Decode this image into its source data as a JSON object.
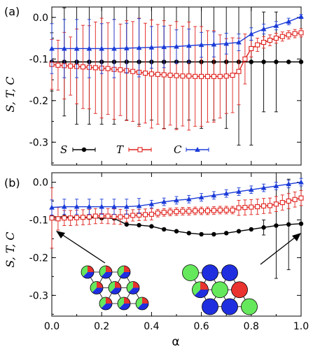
{
  "chart_data": [
    {
      "type": "line",
      "panel_label": "(a)",
      "ylabel": "S, T, C",
      "xlim": [
        0.0,
        1.0
      ],
      "ylim": [
        -0.355,
        0.025
      ],
      "yticks": [
        0.0,
        -0.1,
        -0.2,
        -0.3
      ],
      "ytick_labels": [
        "0.0",
        "-0.1",
        "-0.2",
        "-0.3"
      ],
      "legend_position": "bottom-left",
      "series": [
        {
          "name": "S",
          "color": "#000000",
          "marker": "circle-filled",
          "x": [
            0.0,
            0.05,
            0.1,
            0.15,
            0.2,
            0.25,
            0.3,
            0.35,
            0.4,
            0.45,
            0.5,
            0.55,
            0.6,
            0.65,
            0.7,
            0.75,
            0.8,
            0.85,
            0.9,
            0.95,
            1.0
          ],
          "y": [
            -0.107,
            -0.107,
            -0.107,
            -0.107,
            -0.107,
            -0.107,
            -0.107,
            -0.107,
            -0.107,
            -0.107,
            -0.107,
            -0.107,
            -0.107,
            -0.107,
            -0.107,
            -0.107,
            -0.107,
            -0.107,
            -0.107,
            -0.107,
            -0.107
          ],
          "error": [
            0.07,
            0.13,
            0.15,
            0.15,
            0.15,
            0.15,
            0.14,
            0.15,
            0.14,
            0.16,
            0.16,
            0.14,
            0.16,
            0.14,
            0.16,
            0.2,
            0.2,
            0.12,
            0.12,
            0.0,
            0.0
          ]
        },
        {
          "name": "T",
          "color": "#e0201b",
          "marker": "square-open",
          "x": [
            0.0,
            0.025,
            0.05,
            0.075,
            0.1,
            0.125,
            0.15,
            0.175,
            0.2,
            0.225,
            0.25,
            0.275,
            0.3,
            0.325,
            0.35,
            0.375,
            0.4,
            0.425,
            0.45,
            0.475,
            0.5,
            0.525,
            0.55,
            0.575,
            0.6,
            0.625,
            0.65,
            0.675,
            0.7,
            0.725,
            0.75,
            0.775,
            0.8,
            0.825,
            0.85,
            0.875,
            0.9,
            0.925,
            0.95,
            0.975,
            1.0
          ],
          "y": [
            -0.113,
            -0.115,
            -0.116,
            -0.117,
            -0.118,
            -0.119,
            -0.12,
            -0.121,
            -0.122,
            -0.123,
            -0.125,
            -0.126,
            -0.128,
            -0.13,
            -0.132,
            -0.134,
            -0.136,
            -0.137,
            -0.138,
            -0.139,
            -0.14,
            -0.141,
            -0.141,
            -0.142,
            -0.142,
            -0.142,
            -0.142,
            -0.142,
            -0.141,
            -0.139,
            -0.13,
            -0.1,
            -0.075,
            -0.066,
            -0.06,
            -0.055,
            -0.05,
            -0.046,
            -0.042,
            -0.039,
            -0.037
          ],
          "error": [
            0.06,
            0.06,
            0.08,
            0.07,
            0.09,
            0.1,
            0.1,
            0.11,
            0.12,
            0.11,
            0.12,
            0.11,
            0.12,
            0.12,
            0.13,
            0.12,
            0.13,
            0.12,
            0.13,
            0.12,
            0.13,
            0.12,
            0.13,
            0.12,
            0.12,
            0.11,
            0.11,
            0.1,
            0.09,
            0.09,
            0.08,
            0.06,
            0.02,
            0.016,
            0.014,
            0.013,
            0.012,
            0.011,
            0.01,
            0.01,
            0.01
          ]
        },
        {
          "name": "C",
          "color": "#1a3bd8",
          "marker": "triangle-filled",
          "x": [
            0.0,
            0.05,
            0.1,
            0.15,
            0.2,
            0.25,
            0.3,
            0.35,
            0.4,
            0.45,
            0.5,
            0.55,
            0.6,
            0.65,
            0.7,
            0.75,
            0.8,
            0.85,
            0.9,
            0.95,
            1.0
          ],
          "y": [
            -0.075,
            -0.075,
            -0.075,
            -0.075,
            -0.075,
            -0.075,
            -0.074,
            -0.073,
            -0.072,
            -0.071,
            -0.07,
            -0.068,
            -0.066,
            -0.065,
            -0.063,
            -0.06,
            -0.04,
            -0.028,
            -0.02,
            -0.01,
            0.002
          ],
          "error": [
            0.06,
            0.07,
            0.07,
            0.07,
            0.06,
            0.07,
            0.06,
            0.07,
            0.05,
            0.05,
            0.04,
            0.04,
            0.03,
            0.03,
            0.025,
            0.02,
            0.015,
            0.012,
            0.01,
            0.008,
            0.005
          ]
        }
      ]
    },
    {
      "type": "line",
      "panel_label": "(b)",
      "ylabel": "S, T, C",
      "xlabel": "α",
      "xlim": [
        0.0,
        1.0
      ],
      "ylim": [
        -0.355,
        0.025
      ],
      "xticks": [
        0.0,
        0.2,
        0.4,
        0.6,
        0.8,
        1.0
      ],
      "xtick_labels": [
        "0.0",
        "0.2",
        "0.4",
        "0.6",
        "0.8",
        "1.0"
      ],
      "yticks": [
        0.0,
        -0.1,
        -0.2,
        -0.3
      ],
      "ytick_labels": [
        "0.0",
        "-0.1",
        "-0.2",
        "-0.3"
      ],
      "series": [
        {
          "name": "S",
          "color": "#000000",
          "marker": "circle-filled",
          "x": [
            0.0,
            0.05,
            0.1,
            0.15,
            0.2,
            0.25,
            0.3,
            0.35,
            0.4,
            0.45,
            0.5,
            0.55,
            0.6,
            0.65,
            0.7,
            0.75,
            0.8,
            0.85,
            0.9,
            0.95,
            1.0
          ],
          "y": [
            -0.092,
            -0.092,
            -0.093,
            -0.094,
            -0.095,
            -0.096,
            -0.112,
            -0.114,
            -0.117,
            -0.125,
            -0.13,
            -0.135,
            -0.138,
            -0.138,
            -0.135,
            -0.13,
            -0.125,
            -0.12,
            -0.115,
            -0.112,
            -0.11
          ],
          "error": [
            0.0,
            0.0,
            0.0,
            0.0,
            0.0,
            0.0,
            0.0,
            0.0,
            0.0,
            0.0,
            0.0,
            0.0,
            0.0,
            0.0,
            0.0,
            0.0,
            0.0,
            0.02,
            0.14,
            0.12,
            0.0
          ]
        },
        {
          "name": "T",
          "color": "#e0201b",
          "marker": "square-open",
          "x": [
            0.0,
            0.025,
            0.05,
            0.075,
            0.1,
            0.125,
            0.15,
            0.175,
            0.2,
            0.225,
            0.25,
            0.275,
            0.3,
            0.325,
            0.35,
            0.375,
            0.4,
            0.425,
            0.45,
            0.475,
            0.5,
            0.525,
            0.55,
            0.575,
            0.6,
            0.625,
            0.65,
            0.675,
            0.7,
            0.725,
            0.75,
            0.775,
            0.8,
            0.825,
            0.85,
            0.875,
            0.9,
            0.925,
            0.95,
            0.975,
            1.0
          ],
          "y": [
            -0.095,
            -0.097,
            -0.095,
            -0.095,
            -0.094,
            -0.093,
            -0.092,
            -0.09,
            -0.089,
            -0.09,
            -0.091,
            -0.092,
            -0.09,
            -0.088,
            -0.087,
            -0.086,
            -0.085,
            -0.082,
            -0.08,
            -0.079,
            -0.078,
            -0.077,
            -0.077,
            -0.076,
            -0.076,
            -0.076,
            -0.075,
            -0.074,
            -0.074,
            -0.074,
            -0.068,
            -0.067,
            -0.066,
            -0.065,
            -0.063,
            -0.062,
            -0.058,
            -0.054,
            -0.05,
            -0.046,
            -0.042
          ],
          "error": [
            0.08,
            0.03,
            0.02,
            0.02,
            0.02,
            0.02,
            0.02,
            0.02,
            0.02,
            0.02,
            0.02,
            0.02,
            0.015,
            0.015,
            0.015,
            0.015,
            0.015,
            0.01,
            0.01,
            0.01,
            0.01,
            0.01,
            0.01,
            0.01,
            0.01,
            0.01,
            0.01,
            0.01,
            0.01,
            0.01,
            0.02,
            0.02,
            0.02,
            0.02,
            0.02,
            0.02,
            0.02,
            0.02,
            0.02,
            0.02,
            0.02
          ]
        },
        {
          "name": "C",
          "color": "#1a3bd8",
          "marker": "triangle-filled",
          "x": [
            0.0,
            0.05,
            0.1,
            0.15,
            0.2,
            0.25,
            0.3,
            0.35,
            0.4,
            0.45,
            0.5,
            0.55,
            0.6,
            0.65,
            0.7,
            0.75,
            0.8,
            0.85,
            0.9,
            0.95,
            1.0
          ],
          "y": [
            -0.067,
            -0.065,
            -0.065,
            -0.065,
            -0.065,
            -0.065,
            -0.065,
            -0.063,
            -0.058,
            -0.052,
            -0.048,
            -0.045,
            -0.04,
            -0.035,
            -0.03,
            -0.025,
            -0.02,
            -0.015,
            -0.01,
            -0.005,
            0.0
          ],
          "error": [
            0.02,
            0.02,
            0.02,
            0.02,
            0.02,
            0.02,
            0.02,
            0.02,
            0.01,
            0.01,
            0.01,
            0.01,
            0.01,
            0.01,
            0.01,
            0.01,
            0.01,
            0.01,
            0.01,
            0.01,
            0.01
          ]
        }
      ]
    }
  ],
  "colors": {
    "red": "#e8332e",
    "green": "#66e85c",
    "blue": "#1f2fe0"
  },
  "insets": {
    "left": {
      "pattern": [
        "mixed",
        "mixed",
        "mixed",
        "mixed",
        "mixed",
        "mixed",
        "mixed",
        "mixed",
        "mixed"
      ]
    },
    "right": {
      "pattern": [
        "green",
        "blue",
        "blue",
        "mixed",
        "green",
        "red",
        "blue",
        "blue",
        "green"
      ]
    }
  }
}
